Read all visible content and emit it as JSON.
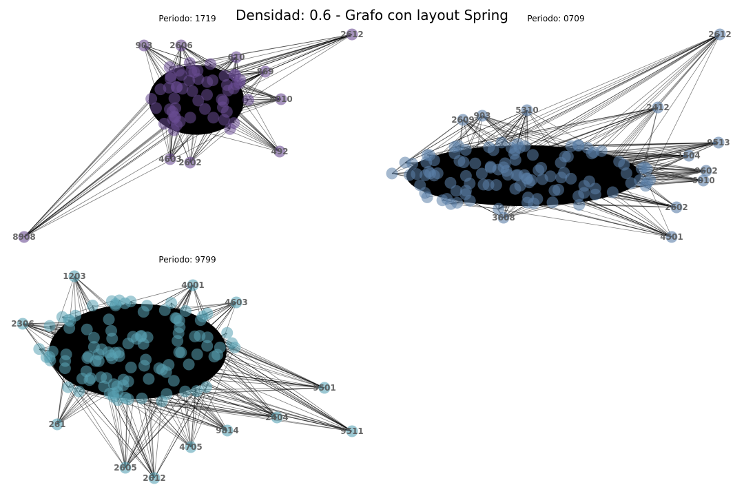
{
  "figure": {
    "title": "Densidad: 0.6 - Grafo con layout Spring"
  },
  "panels": [
    {
      "title": "Periodo: 1719",
      "node_color": "#6a4c93",
      "labeled_nodes": [
        "2612",
        "903",
        "2606",
        "610",
        "869",
        "8010",
        "492",
        "2602",
        "4603",
        "8908"
      ]
    },
    {
      "title": "Periodo: 0709",
      "node_color": "#5b7fa8",
      "labeled_nodes": [
        "2612",
        "9513",
        "2412",
        "5310",
        "903",
        "2609",
        "2602",
        "9602",
        "6010",
        "4501",
        "3608",
        "1504"
      ]
    },
    {
      "title": "Periodo: 9799",
      "node_color": "#5aa3b5",
      "labeled_nodes": [
        "1203",
        "4001",
        "4603",
        "2306",
        "9501",
        "9511",
        "4705",
        "2605",
        "2612",
        "2404",
        "9814",
        "261"
      ]
    }
  ]
}
